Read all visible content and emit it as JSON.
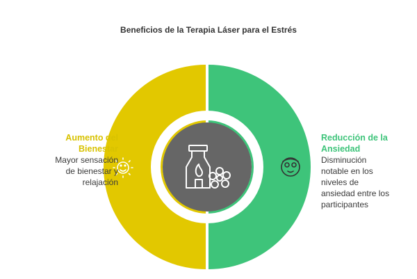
{
  "title": "Beneficios de la Terapia Láser para el Estrés",
  "colors": {
    "left_segment": "#e2c800",
    "right_segment": "#3ec47a",
    "center": "#666666",
    "left_heading": "#d8c200",
    "right_heading": "#3ec47a"
  },
  "left": {
    "heading_line1": "Aumento del",
    "heading_line2": "Bienestar",
    "desc_line1": "Mayor sensación",
    "desc_line2": "de bienestar y",
    "desc_line3": "relajación",
    "icon": "sun-smile-icon"
  },
  "right": {
    "heading_line1": "Reducción de la",
    "heading_line2": "Ansiedad",
    "desc_line1": "Disminución",
    "desc_line2": "notable en los",
    "desc_line3": "niveles de",
    "desc_line4": "ansiedad entre los",
    "desc_line5": "participantes",
    "icon": "face-mask-icon"
  },
  "center": {
    "icon": "oil-diffuser-flower-icon"
  }
}
